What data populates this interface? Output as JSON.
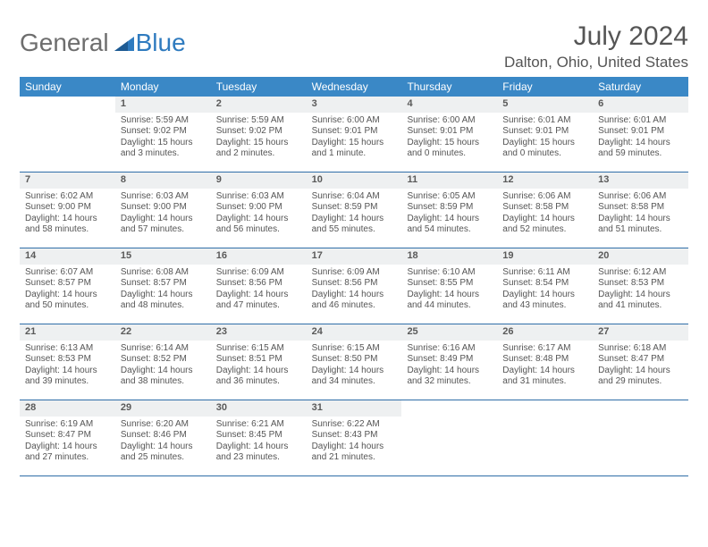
{
  "logo": {
    "general": "General",
    "blue": "Blue"
  },
  "title": "July 2024",
  "location": "Dalton, Ohio, United States",
  "dow": [
    "Sunday",
    "Monday",
    "Tuesday",
    "Wednesday",
    "Thursday",
    "Friday",
    "Saturday"
  ],
  "colors": {
    "header_bg": "#3a88c6",
    "row_border": "#2f6ea8",
    "daynum_bg": "#eef0f1",
    "text": "#555555",
    "logo_gray": "#6e6e6e",
    "logo_blue": "#2f7bbf"
  },
  "weeks": [
    [
      null,
      {
        "n": "1",
        "sr": "Sunrise: 5:59 AM",
        "ss": "Sunset: 9:02 PM",
        "dl": "Daylight: 15 hours and 3 minutes."
      },
      {
        "n": "2",
        "sr": "Sunrise: 5:59 AM",
        "ss": "Sunset: 9:02 PM",
        "dl": "Daylight: 15 hours and 2 minutes."
      },
      {
        "n": "3",
        "sr": "Sunrise: 6:00 AM",
        "ss": "Sunset: 9:01 PM",
        "dl": "Daylight: 15 hours and 1 minute."
      },
      {
        "n": "4",
        "sr": "Sunrise: 6:00 AM",
        "ss": "Sunset: 9:01 PM",
        "dl": "Daylight: 15 hours and 0 minutes."
      },
      {
        "n": "5",
        "sr": "Sunrise: 6:01 AM",
        "ss": "Sunset: 9:01 PM",
        "dl": "Daylight: 15 hours and 0 minutes."
      },
      {
        "n": "6",
        "sr": "Sunrise: 6:01 AM",
        "ss": "Sunset: 9:01 PM",
        "dl": "Daylight: 14 hours and 59 minutes."
      }
    ],
    [
      {
        "n": "7",
        "sr": "Sunrise: 6:02 AM",
        "ss": "Sunset: 9:00 PM",
        "dl": "Daylight: 14 hours and 58 minutes."
      },
      {
        "n": "8",
        "sr": "Sunrise: 6:03 AM",
        "ss": "Sunset: 9:00 PM",
        "dl": "Daylight: 14 hours and 57 minutes."
      },
      {
        "n": "9",
        "sr": "Sunrise: 6:03 AM",
        "ss": "Sunset: 9:00 PM",
        "dl": "Daylight: 14 hours and 56 minutes."
      },
      {
        "n": "10",
        "sr": "Sunrise: 6:04 AM",
        "ss": "Sunset: 8:59 PM",
        "dl": "Daylight: 14 hours and 55 minutes."
      },
      {
        "n": "11",
        "sr": "Sunrise: 6:05 AM",
        "ss": "Sunset: 8:59 PM",
        "dl": "Daylight: 14 hours and 54 minutes."
      },
      {
        "n": "12",
        "sr": "Sunrise: 6:06 AM",
        "ss": "Sunset: 8:58 PM",
        "dl": "Daylight: 14 hours and 52 minutes."
      },
      {
        "n": "13",
        "sr": "Sunrise: 6:06 AM",
        "ss": "Sunset: 8:58 PM",
        "dl": "Daylight: 14 hours and 51 minutes."
      }
    ],
    [
      {
        "n": "14",
        "sr": "Sunrise: 6:07 AM",
        "ss": "Sunset: 8:57 PM",
        "dl": "Daylight: 14 hours and 50 minutes."
      },
      {
        "n": "15",
        "sr": "Sunrise: 6:08 AM",
        "ss": "Sunset: 8:57 PM",
        "dl": "Daylight: 14 hours and 48 minutes."
      },
      {
        "n": "16",
        "sr": "Sunrise: 6:09 AM",
        "ss": "Sunset: 8:56 PM",
        "dl": "Daylight: 14 hours and 47 minutes."
      },
      {
        "n": "17",
        "sr": "Sunrise: 6:09 AM",
        "ss": "Sunset: 8:56 PM",
        "dl": "Daylight: 14 hours and 46 minutes."
      },
      {
        "n": "18",
        "sr": "Sunrise: 6:10 AM",
        "ss": "Sunset: 8:55 PM",
        "dl": "Daylight: 14 hours and 44 minutes."
      },
      {
        "n": "19",
        "sr": "Sunrise: 6:11 AM",
        "ss": "Sunset: 8:54 PM",
        "dl": "Daylight: 14 hours and 43 minutes."
      },
      {
        "n": "20",
        "sr": "Sunrise: 6:12 AM",
        "ss": "Sunset: 8:53 PM",
        "dl": "Daylight: 14 hours and 41 minutes."
      }
    ],
    [
      {
        "n": "21",
        "sr": "Sunrise: 6:13 AM",
        "ss": "Sunset: 8:53 PM",
        "dl": "Daylight: 14 hours and 39 minutes."
      },
      {
        "n": "22",
        "sr": "Sunrise: 6:14 AM",
        "ss": "Sunset: 8:52 PM",
        "dl": "Daylight: 14 hours and 38 minutes."
      },
      {
        "n": "23",
        "sr": "Sunrise: 6:15 AM",
        "ss": "Sunset: 8:51 PM",
        "dl": "Daylight: 14 hours and 36 minutes."
      },
      {
        "n": "24",
        "sr": "Sunrise: 6:15 AM",
        "ss": "Sunset: 8:50 PM",
        "dl": "Daylight: 14 hours and 34 minutes."
      },
      {
        "n": "25",
        "sr": "Sunrise: 6:16 AM",
        "ss": "Sunset: 8:49 PM",
        "dl": "Daylight: 14 hours and 32 minutes."
      },
      {
        "n": "26",
        "sr": "Sunrise: 6:17 AM",
        "ss": "Sunset: 8:48 PM",
        "dl": "Daylight: 14 hours and 31 minutes."
      },
      {
        "n": "27",
        "sr": "Sunrise: 6:18 AM",
        "ss": "Sunset: 8:47 PM",
        "dl": "Daylight: 14 hours and 29 minutes."
      }
    ],
    [
      {
        "n": "28",
        "sr": "Sunrise: 6:19 AM",
        "ss": "Sunset: 8:47 PM",
        "dl": "Daylight: 14 hours and 27 minutes."
      },
      {
        "n": "29",
        "sr": "Sunrise: 6:20 AM",
        "ss": "Sunset: 8:46 PM",
        "dl": "Daylight: 14 hours and 25 minutes."
      },
      {
        "n": "30",
        "sr": "Sunrise: 6:21 AM",
        "ss": "Sunset: 8:45 PM",
        "dl": "Daylight: 14 hours and 23 minutes."
      },
      {
        "n": "31",
        "sr": "Sunrise: 6:22 AM",
        "ss": "Sunset: 8:43 PM",
        "dl": "Daylight: 14 hours and 21 minutes."
      },
      null,
      null,
      null
    ]
  ]
}
